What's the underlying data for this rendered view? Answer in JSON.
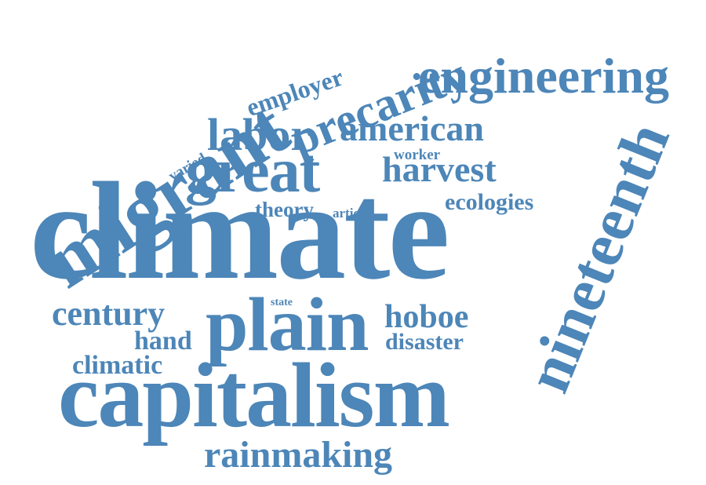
{
  "color": "#4d86b8",
  "words": {
    "climate": "climate",
    "capitalism": "capitalism",
    "migrant": "migrant",
    "great": "great",
    "plain": "plain",
    "nineteenth": "nineteenth",
    "engineering": "engineering",
    "precarity": "precarity",
    "labor": "labor",
    "american": "american",
    "harvest": "harvest",
    "rainmaking": "rainmaking",
    "century": "century",
    "hoboe": "hoboe",
    "climatic": "climatic",
    "hand": "hand",
    "disaster": "disaster",
    "ecologies": "ecologies",
    "employer": "employer",
    "theory": "theory",
    "article": "article",
    "worker": "worker",
    "varied": "varied",
    "year": "year",
    "state": "state"
  }
}
